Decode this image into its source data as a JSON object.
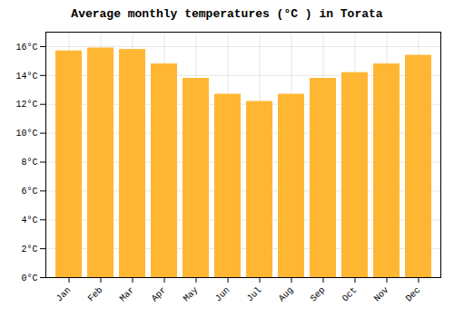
{
  "chart_data": {
    "type": "bar",
    "title": "Average monthly temperatures (°C ) in Torata",
    "categories": [
      "Jan",
      "Feb",
      "Mar",
      "Apr",
      "May",
      "Jun",
      "Jul",
      "Aug",
      "Sep",
      "Oct",
      "Nov",
      "Dec"
    ],
    "values": [
      15.7,
      15.9,
      15.8,
      14.8,
      13.8,
      12.7,
      12.2,
      12.7,
      13.8,
      14.2,
      14.8,
      15.4
    ],
    "color": "#FFB733",
    "ylim": [
      0,
      17
    ],
    "yticks": [
      {
        "value": 0,
        "label": "0°C"
      },
      {
        "value": 2,
        "label": "2°C"
      },
      {
        "value": 4,
        "label": "4°C"
      },
      {
        "value": 6,
        "label": "6°C"
      },
      {
        "value": 8,
        "label": "8°C"
      },
      {
        "value": 10,
        "label": "10°C"
      },
      {
        "value": 12,
        "label": "12°C"
      },
      {
        "value": 14,
        "label": "14°C"
      },
      {
        "value": 16,
        "label": "16°C"
      }
    ],
    "grid": true
  }
}
